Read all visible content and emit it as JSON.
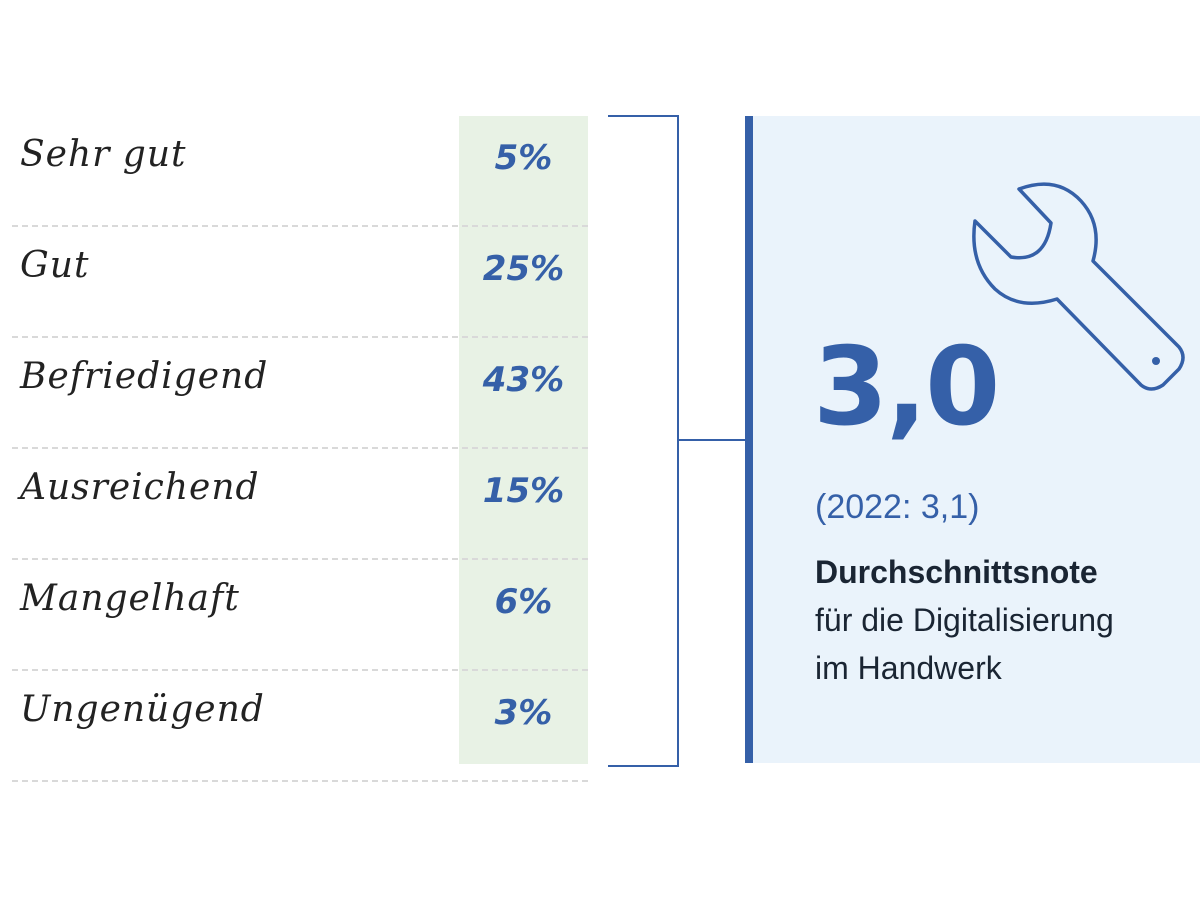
{
  "chart_data": {
    "type": "table",
    "categories": [
      "Sehr gut",
      "Gut",
      "Befriedigend",
      "Ausreichend",
      "Mangelhaft",
      "Ungenügend"
    ],
    "values": [
      5,
      25,
      43,
      15,
      6,
      3
    ],
    "value_labels": [
      "5%",
      "25%",
      "43%",
      "15%",
      "6%",
      "3%"
    ],
    "unit": "%"
  },
  "summary": {
    "score": "3,0",
    "previous": "(2022: 3,1)",
    "headline": "Durchschnittsnote",
    "description_line1": "für die Digitalisierung",
    "description_line2": "im Handwerk",
    "icon": "wrench-icon"
  },
  "colors": {
    "accent": "#3560a8",
    "panel_bg": "#eaf3fb",
    "column_bg": "#e8f2e5",
    "text_dark": "#1a2533"
  }
}
